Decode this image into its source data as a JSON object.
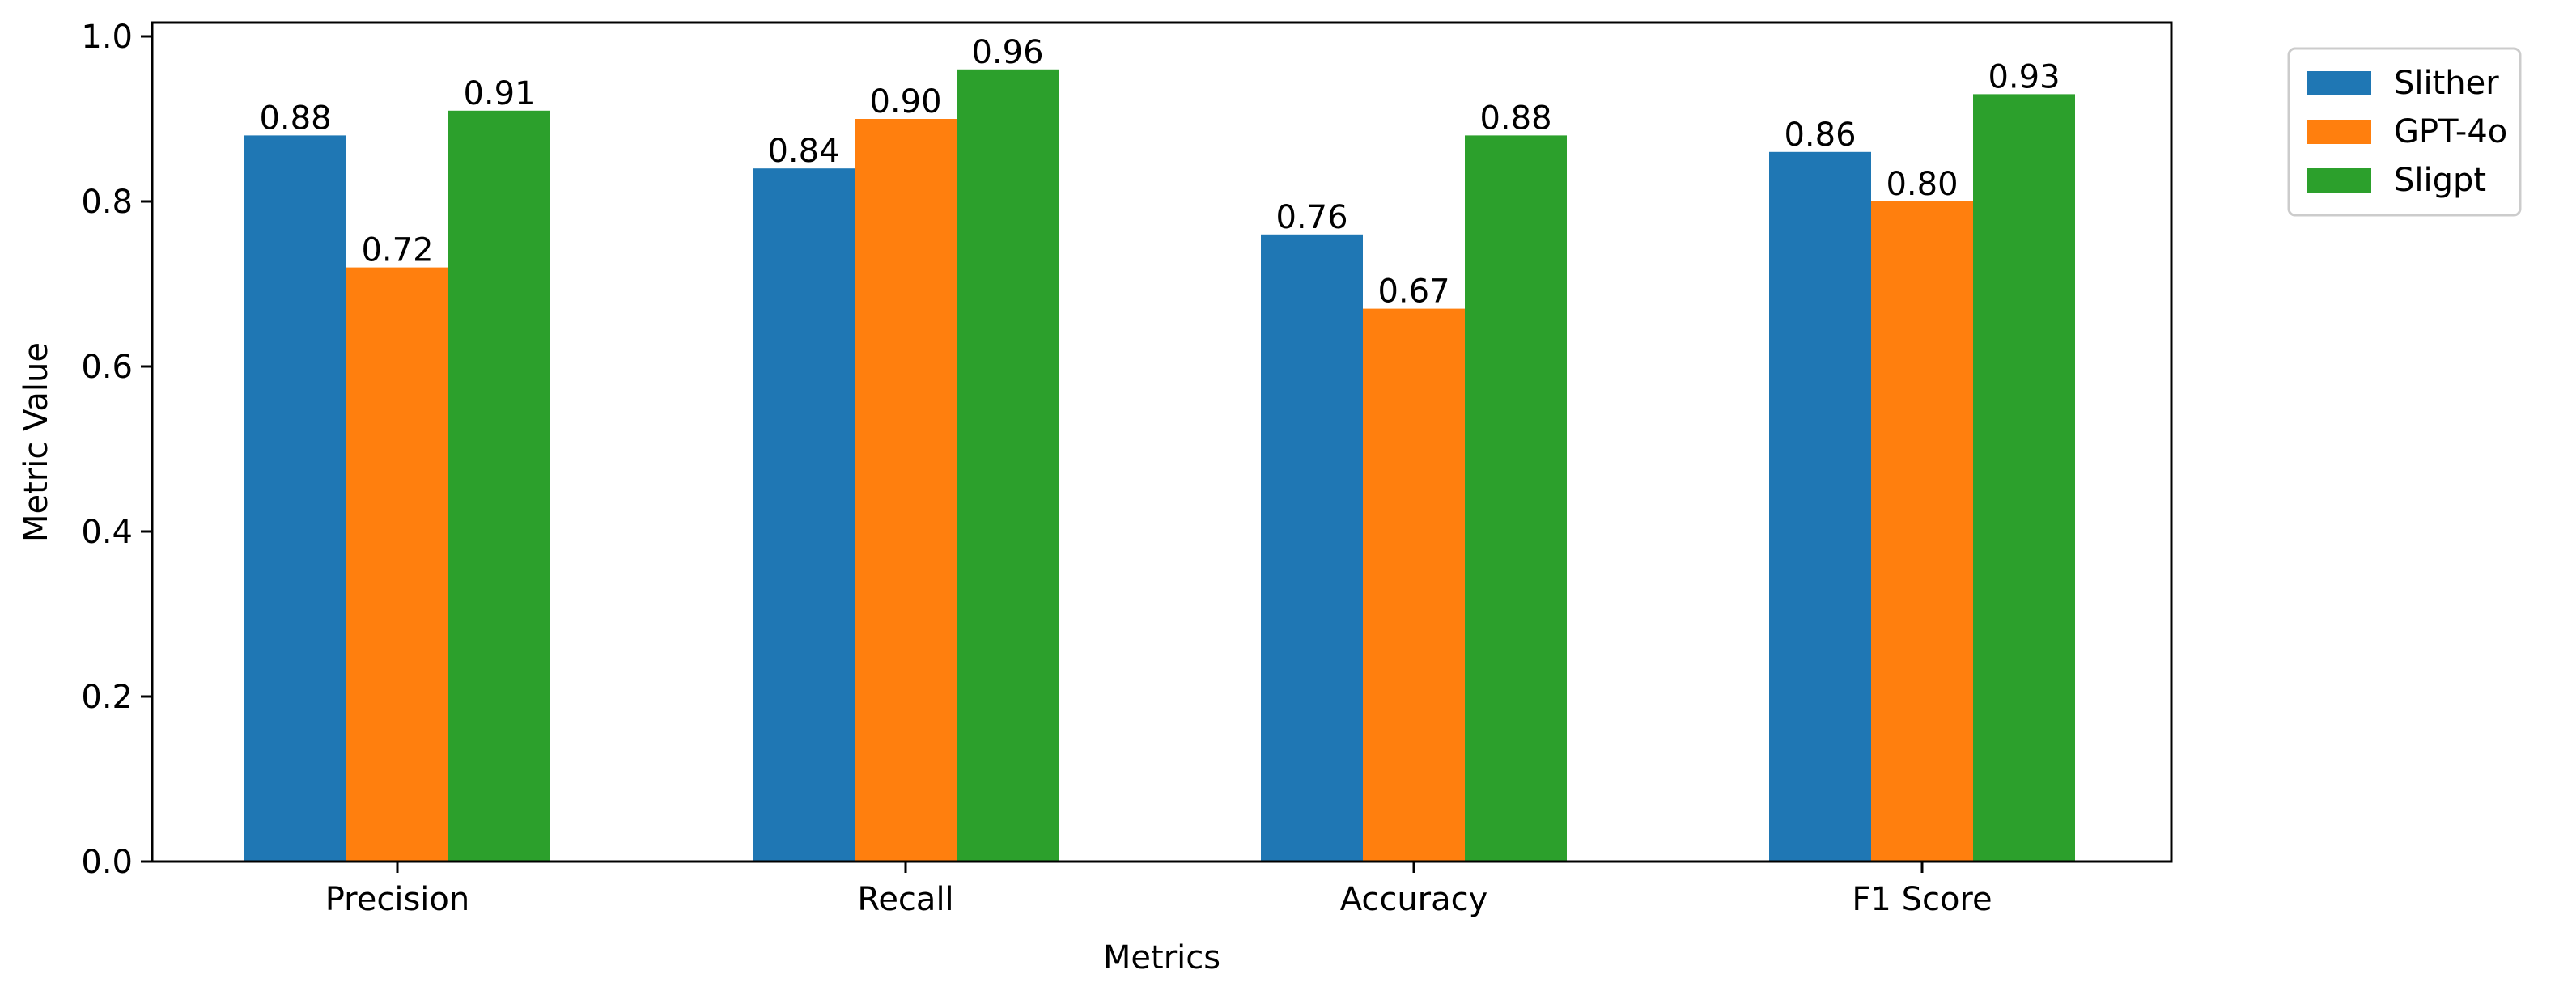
{
  "chart_data": {
    "type": "bar",
    "title": "",
    "xlabel": "Metrics",
    "ylabel": "Metric Value",
    "categories": [
      "Precision",
      "Recall",
      "Accuracy",
      "F1 Score"
    ],
    "series": [
      {
        "name": "Slither",
        "color": "#1f77b4",
        "values": [
          0.88,
          0.84,
          0.76,
          0.86
        ],
        "labels": [
          "0.88",
          "0.84",
          "0.76",
          "0.86"
        ]
      },
      {
        "name": "GPT-4o",
        "color": "#ff7f0e",
        "values": [
          0.72,
          0.9,
          0.67,
          0.8
        ],
        "labels": [
          "0.72",
          "0.90",
          "0.67",
          "0.80"
        ]
      },
      {
        "name": "Sligpt",
        "color": "#2ca02c",
        "values": [
          0.91,
          0.96,
          0.88,
          0.93
        ],
        "labels": [
          "0.91",
          "0.96",
          "0.88",
          "0.93"
        ]
      }
    ],
    "ylim": [
      0,
      1.0
    ],
    "yticks": [
      0.0,
      0.2,
      0.4,
      0.6,
      0.8,
      1.0
    ],
    "ytick_labels": [
      "0.0",
      "0.2",
      "0.4",
      "0.6",
      "0.8",
      "1.0"
    ],
    "grid": false,
    "legend_position": "outside-top-right"
  }
}
